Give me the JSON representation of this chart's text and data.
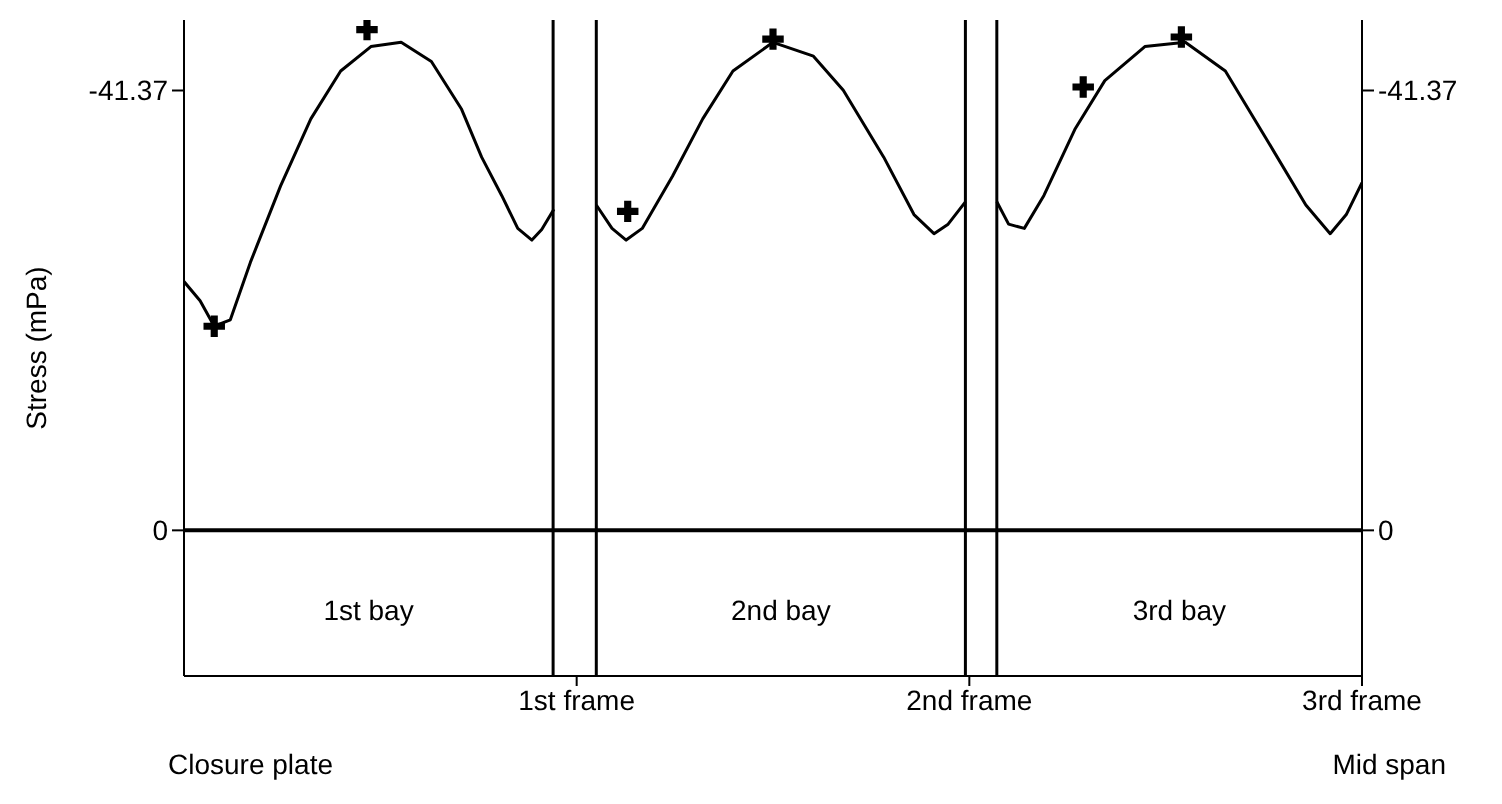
{
  "chart_data": {
    "type": "line",
    "ylabel": "Stress (mPa)",
    "xlim": [
      0,
      3
    ],
    "xticks": [
      {
        "value": 1,
        "label": "1st frame"
      },
      {
        "value": 2,
        "label": "2nd frame"
      },
      {
        "value": 3,
        "label": "3rd frame"
      }
    ],
    "ylim": [
      13.7,
      -48
    ],
    "yticks": [
      -41.37,
      0
    ],
    "y2lim": [
      13.7,
      -48
    ],
    "y2ticks": [
      -41.37,
      0
    ],
    "series": [
      {
        "color": "#000000",
        "x": [
          0,
          0.041,
          0.077,
          0.118,
          0.169,
          0.246,
          0.323,
          0.399,
          0.476,
          0.553,
          0.63,
          0.707,
          0.758,
          0.809,
          0.85,
          0.886,
          0.911,
          0.942,
          1.0,
          1.05,
          1.09,
          1.126,
          1.167,
          1.244,
          1.321,
          1.398,
          1.5,
          1.603,
          1.679,
          1.782,
          1.859,
          1.91,
          1.946,
          1.99,
          2.03,
          2.07,
          2.1,
          2.14,
          2.19,
          2.27,
          2.345,
          2.447,
          2.55,
          2.652,
          2.755,
          2.857,
          2.919,
          2.96,
          3.0
        ],
        "values": [
          -23.4,
          -21.6,
          -19.2,
          -19.8,
          -25.2,
          -32.4,
          -38.7,
          -43.2,
          -45.5,
          -45.9,
          -44.1,
          -39.6,
          -35.1,
          -31.5,
          -28.4,
          -27.3,
          -28.3,
          -30.2,
          null,
          -30.6,
          -28.4,
          -27.3,
          -28.4,
          -33.3,
          -38.7,
          -43.2,
          -45.9,
          -44.6,
          -41.4,
          -35.1,
          -29.7,
          -27.9,
          -28.8,
          -30.9,
          null,
          -30.9,
          -28.8,
          -28.4,
          -31.5,
          -37.8,
          -42.3,
          -45.5,
          -45.9,
          -43.2,
          -36.9,
          -30.6,
          -27.9,
          -29.7,
          -32.7
        ]
      },
      {
        "type": "scatter",
        "color": "#000000",
        "marker": "cross",
        "x": [
          0.077,
          0.466,
          1.13,
          1.5,
          2.29,
          2.54
        ],
        "values": [
          -19.2,
          -47.1,
          -30.0,
          -46.2,
          -41.7,
          -46.4
        ]
      }
    ],
    "ref_lines": [
      {
        "axis": "y",
        "value": 0,
        "color": "#000000"
      },
      {
        "axis": "x",
        "value": 0.94,
        "color": "#000000"
      },
      {
        "axis": "x",
        "value": 1.05,
        "color": "#000000"
      },
      {
        "axis": "x",
        "value": 1.99,
        "color": "#000000"
      },
      {
        "axis": "x",
        "value": 2.07,
        "color": "#000000"
      }
    ],
    "annotations": [
      "1st bay",
      "2nd bay",
      "3rd bay",
      "Closure plate",
      "Mid span"
    ]
  }
}
